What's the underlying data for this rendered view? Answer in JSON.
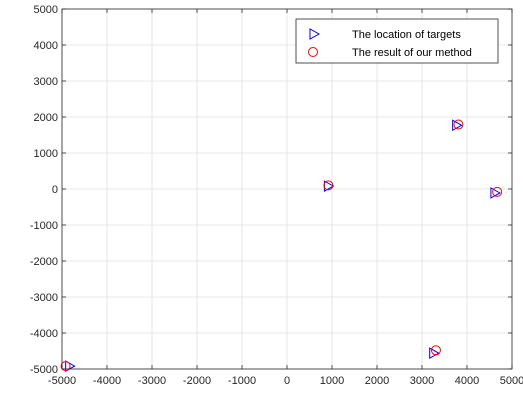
{
  "chart_data": {
    "type": "scatter",
    "title": "",
    "xlabel": "",
    "ylabel": "",
    "xlim": [
      -5000,
      5000
    ],
    "ylim": [
      -5000,
      5000
    ],
    "x_ticks": [
      -5000,
      -4000,
      -3000,
      -2000,
      -1000,
      0,
      1000,
      2000,
      3000,
      4000,
      5000
    ],
    "y_ticks": [
      -5000,
      -4000,
      -3000,
      -2000,
      -1000,
      0,
      1000,
      2000,
      3000,
      4000,
      5000
    ],
    "grid": true,
    "legend_position": "top-right",
    "series": [
      {
        "name": "The location of targets",
        "marker": "triangle-right",
        "color": "#0000ff",
        "points": [
          {
            "x": -4830,
            "y": -4920
          },
          {
            "x": 920,
            "y": 80
          },
          {
            "x": 3770,
            "y": 1770
          },
          {
            "x": 4620,
            "y": -110
          },
          {
            "x": 3260,
            "y": -4560
          }
        ]
      },
      {
        "name": "The result of our method",
        "marker": "circle",
        "color": "#ff0000",
        "points": [
          {
            "x": -4920,
            "y": -4920
          },
          {
            "x": 920,
            "y": 100
          },
          {
            "x": 3810,
            "y": 1790
          },
          {
            "x": 4670,
            "y": -80
          },
          {
            "x": 3310,
            "y": -4480
          }
        ]
      }
    ]
  }
}
